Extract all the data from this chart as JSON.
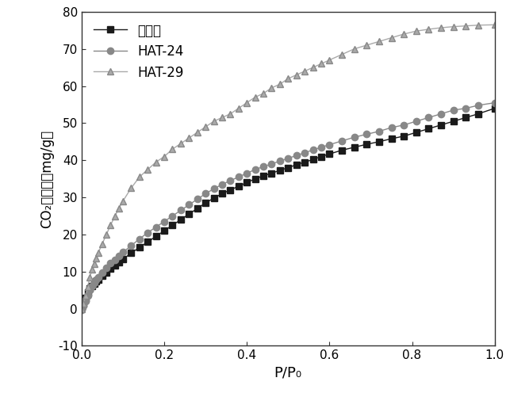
{
  "series": {
    "activated_carbon": {
      "label": "活性炭",
      "color": "#1a1a1a",
      "marker": "s",
      "markercolor": "#1a1a1a",
      "markeredgecolor": "#1a1a1a",
      "x": [
        0.0,
        0.005,
        0.01,
        0.015,
        0.02,
        0.025,
        0.03,
        0.035,
        0.04,
        0.05,
        0.06,
        0.07,
        0.08,
        0.09,
        0.1,
        0.12,
        0.14,
        0.16,
        0.18,
        0.2,
        0.22,
        0.24,
        0.26,
        0.28,
        0.3,
        0.32,
        0.34,
        0.36,
        0.38,
        0.4,
        0.42,
        0.44,
        0.46,
        0.48,
        0.5,
        0.52,
        0.54,
        0.56,
        0.58,
        0.6,
        0.63,
        0.66,
        0.69,
        0.72,
        0.75,
        0.78,
        0.81,
        0.84,
        0.87,
        0.9,
        0.93,
        0.96,
        1.0
      ],
      "y": [
        0.5,
        1.5,
        3.0,
        4.5,
        5.5,
        6.2,
        6.8,
        7.3,
        7.8,
        8.8,
        9.8,
        10.8,
        11.7,
        12.5,
        13.3,
        15.0,
        16.5,
        18.0,
        19.5,
        21.0,
        22.5,
        24.0,
        25.5,
        27.0,
        28.5,
        29.8,
        31.0,
        32.0,
        33.0,
        34.0,
        35.0,
        35.8,
        36.5,
        37.3,
        38.0,
        38.8,
        39.5,
        40.2,
        41.0,
        41.7,
        42.7,
        43.5,
        44.3,
        45.0,
        45.8,
        46.5,
        47.5,
        48.5,
        49.5,
        50.5,
        51.5,
        52.5,
        54.0
      ]
    },
    "HAT24": {
      "label": "HAT-24",
      "color": "#888888",
      "marker": "o",
      "markercolor": "#888888",
      "markeredgecolor": "#888888",
      "x": [
        0.0,
        0.005,
        0.01,
        0.015,
        0.02,
        0.025,
        0.03,
        0.035,
        0.04,
        0.05,
        0.06,
        0.07,
        0.08,
        0.09,
        0.1,
        0.12,
        0.14,
        0.16,
        0.18,
        0.2,
        0.22,
        0.24,
        0.26,
        0.28,
        0.3,
        0.32,
        0.34,
        0.36,
        0.38,
        0.4,
        0.42,
        0.44,
        0.46,
        0.48,
        0.5,
        0.52,
        0.54,
        0.56,
        0.58,
        0.6,
        0.63,
        0.66,
        0.69,
        0.72,
        0.75,
        0.78,
        0.81,
        0.84,
        0.87,
        0.9,
        0.93,
        0.96,
        1.0
      ],
      "y": [
        -0.3,
        0.8,
        2.0,
        3.5,
        5.0,
        6.2,
        7.0,
        7.8,
        8.5,
        9.8,
        11.0,
        12.2,
        13.2,
        14.2,
        15.2,
        17.0,
        18.8,
        20.5,
        22.0,
        23.5,
        25.0,
        26.5,
        28.0,
        29.5,
        31.0,
        32.3,
        33.5,
        34.5,
        35.5,
        36.5,
        37.5,
        38.3,
        39.0,
        39.8,
        40.5,
        41.3,
        42.0,
        42.8,
        43.5,
        44.2,
        45.2,
        46.2,
        47.0,
        47.8,
        48.8,
        49.5,
        50.5,
        51.5,
        52.5,
        53.5,
        54.0,
        54.8,
        55.5
      ]
    },
    "HAT29": {
      "label": "HAT-29",
      "color": "#aaaaaa",
      "marker": "^",
      "markercolor": "#aaaaaa",
      "markeredgecolor": "#888888",
      "x": [
        0.0,
        0.005,
        0.01,
        0.015,
        0.02,
        0.025,
        0.03,
        0.035,
        0.04,
        0.05,
        0.06,
        0.07,
        0.08,
        0.09,
        0.1,
        0.12,
        0.14,
        0.16,
        0.18,
        0.2,
        0.22,
        0.24,
        0.26,
        0.28,
        0.3,
        0.32,
        0.34,
        0.36,
        0.38,
        0.4,
        0.42,
        0.44,
        0.46,
        0.48,
        0.5,
        0.52,
        0.54,
        0.56,
        0.58,
        0.6,
        0.63,
        0.66,
        0.69,
        0.72,
        0.75,
        0.78,
        0.81,
        0.84,
        0.87,
        0.9,
        0.93,
        0.96,
        1.0
      ],
      "y": [
        0.0,
        1.5,
        3.5,
        6.0,
        8.5,
        10.5,
        12.0,
        13.5,
        15.0,
        17.5,
        20.0,
        22.5,
        24.8,
        27.0,
        29.0,
        32.5,
        35.5,
        37.5,
        39.5,
        41.0,
        43.0,
        44.5,
        46.0,
        47.5,
        49.0,
        50.5,
        51.5,
        52.5,
        54.0,
        55.5,
        57.0,
        58.0,
        59.5,
        60.5,
        62.0,
        63.0,
        64.0,
        65.0,
        66.0,
        67.0,
        68.5,
        70.0,
        71.0,
        72.0,
        73.0,
        74.0,
        74.8,
        75.3,
        75.7,
        76.0,
        76.2,
        76.4,
        76.5
      ]
    }
  },
  "xlabel": "P/P₀",
  "ylabel": "CO₂吸附量（mg/g）",
  "xlim": [
    0.0,
    1.0
  ],
  "ylim": [
    -10,
    80
  ],
  "yticks": [
    -10,
    0,
    10,
    20,
    30,
    40,
    50,
    60,
    70,
    80
  ],
  "xticks": [
    0.0,
    0.2,
    0.4,
    0.6,
    0.8,
    1.0
  ],
  "background_color": "#ffffff",
  "linewidth": 1.0,
  "markersize": 6,
  "legend_loc": "upper left",
  "legend_fontsize": 12,
  "tick_fontsize": 11,
  "xlabel_fontsize": 13,
  "ylabel_fontsize": 12
}
